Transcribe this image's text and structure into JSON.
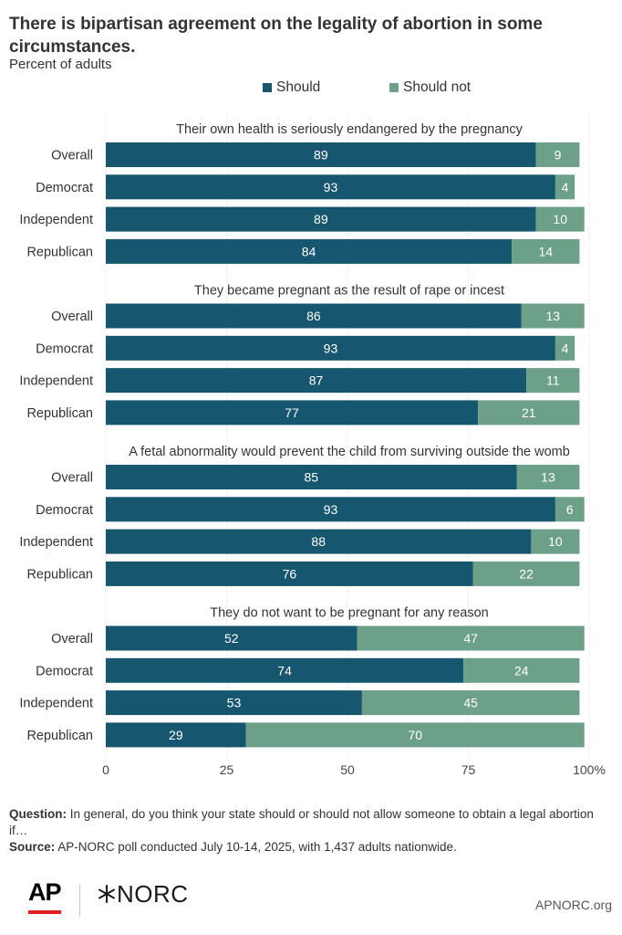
{
  "header": {
    "title": "There is bipartisan agreement on the legality of abortion in some circumstances.",
    "subtitle": "Percent of adults"
  },
  "legend": [
    {
      "label": "Should",
      "color": "#17566f"
    },
    {
      "label": "Should not",
      "color": "#6da088"
    }
  ],
  "chart_data": {
    "type": "bar",
    "orientation": "horizontal",
    "stacked": true,
    "xlim": [
      0,
      100
    ],
    "x_ticks": [
      "0",
      "25",
      "50",
      "75",
      "100%"
    ],
    "categories": [
      "Overall",
      "Democrat",
      "Independent",
      "Republican"
    ],
    "colors": {
      "should": "#17566f",
      "should_not": "#6da088"
    },
    "panels": [
      {
        "title": "Their own health is seriously endangered by the pregnancy",
        "should": [
          89,
          93,
          89,
          84
        ],
        "should_not": [
          9,
          4,
          10,
          14
        ]
      },
      {
        "title": "They became pregnant as the result of rape or incest",
        "should": [
          86,
          93,
          87,
          77
        ],
        "should_not": [
          13,
          4,
          11,
          21
        ]
      },
      {
        "title": "A fetal abnormality would prevent the child from surviving outside the womb",
        "should": [
          85,
          93,
          88,
          76
        ],
        "should_not": [
          13,
          6,
          10,
          22
        ]
      },
      {
        "title": "They do not want to be pregnant for any reason",
        "should": [
          52,
          74,
          53,
          29
        ],
        "should_not": [
          47,
          24,
          45,
          70
        ]
      }
    ]
  },
  "footer": {
    "question_label": "Question:",
    "question_text": " In general, do you think your state should or should not allow someone to obtain a legal abortion if…",
    "source_label": "Source:",
    "source_text": " AP-NORC poll conducted July 10-14, 2025, with 1,437 adults nationwide."
  },
  "branding": {
    "ap_logo": "AP",
    "norc_logo": "NORC",
    "norc_icon": "asterisk-icon",
    "site": "APNORC.org"
  }
}
